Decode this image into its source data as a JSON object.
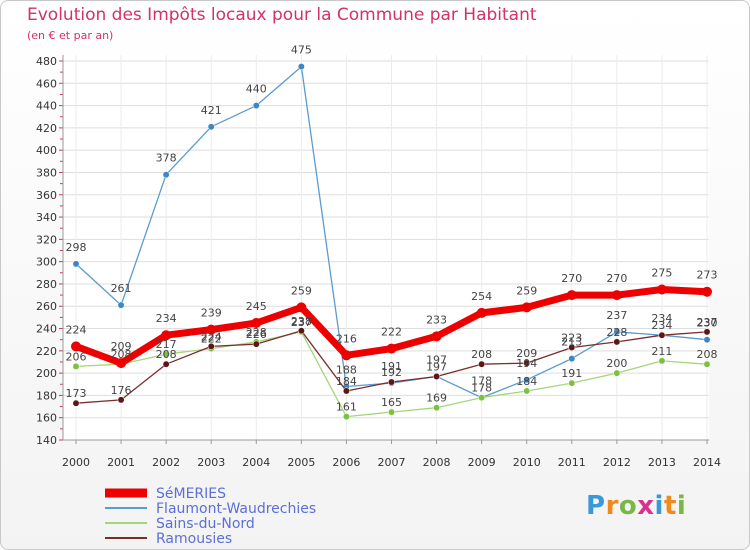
{
  "title": "Evolution des Impôts locaux pour la Commune par Habitant",
  "subtitle": "(en € et par an)",
  "logo": {
    "text": "Proxiti",
    "colors": [
      "#3a9ad9",
      "#f08a1c",
      "#7ab648",
      "#d9328c",
      "#3a9ad9",
      "#f08a1c",
      "#7ab648"
    ]
  },
  "chart_data": {
    "type": "line",
    "title": "Evolution des Impôts locaux pour la Commune par Habitant",
    "ylabel": "(en € et par an)",
    "xlabel": "",
    "ylim": [
      140,
      480
    ],
    "yticks": [
      140,
      160,
      180,
      200,
      220,
      240,
      260,
      280,
      300,
      320,
      340,
      360,
      380,
      400,
      420,
      440,
      460,
      480
    ],
    "categories": [
      "2000",
      "2001",
      "2002",
      "2003",
      "2004",
      "2005",
      "2006",
      "2007",
      "2008",
      "2009",
      "2010",
      "2011",
      "2012",
      "2013",
      "2014"
    ],
    "grid": true,
    "legend": "bottom-left",
    "series": [
      {
        "name": "Flaumont-Waudrechies",
        "color": "#5a9ccf",
        "width": 1.3,
        "marker": "#3f86c4",
        "labels_above": true,
        "values": [
          298,
          261,
          378,
          421,
          440,
          475,
          188,
          191,
          197,
          178,
          194,
          213,
          237,
          234,
          230
        ],
        "labels": [
          "298",
          "261",
          "378",
          "421",
          "440",
          "475",
          "188",
          "191",
          "197",
          "178",
          "194",
          "213",
          "237",
          "234",
          "230"
        ]
      },
      {
        "name": "Sains-du-Nord",
        "color": "#a6d57a",
        "width": 1.3,
        "marker": "#7cc242",
        "labels_above": false,
        "values": [
          206,
          208,
          217,
          222,
          228,
          237,
          161,
          165,
          169,
          178,
          184,
          191,
          200,
          211,
          208
        ],
        "labels": [
          "206",
          "208",
          "217",
          "222",
          "228",
          "237",
          "161",
          "165",
          "169",
          "178",
          "184",
          "191",
          "200",
          "211",
          "208"
        ]
      },
      {
        "name": "Ramousies",
        "color": "#7a2e2e",
        "width": 1.3,
        "marker": "#5c1616",
        "labels_above": false,
        "values": [
          173,
          176,
          208,
          224,
          226,
          238,
          184,
          192,
          197,
          208,
          209,
          223,
          228,
          234,
          237
        ],
        "labels": [
          "173",
          "176",
          "208",
          "224",
          "226",
          "238",
          "184",
          "192",
          "197",
          "208",
          "209",
          "223",
          "228",
          "234",
          "237"
        ]
      },
      {
        "name": "SéMERIES",
        "color": "#ee0000",
        "width": 7,
        "marker": "#ee0000",
        "labels_above": true,
        "values": [
          224,
          209,
          234,
          239,
          245,
          259,
          216,
          222,
          233,
          254,
          259,
          270,
          270,
          275,
          273
        ],
        "labels": [
          "224",
          "209",
          "234",
          "239",
          "245",
          "259",
          "216",
          "222",
          "233",
          "254",
          "259",
          "270",
          "270",
          "275",
          "273"
        ]
      }
    ],
    "legend_order": [
      "SéMERIES",
      "Flaumont-Waudrechies",
      "Sains-du-Nord",
      "Ramousies"
    ]
  }
}
